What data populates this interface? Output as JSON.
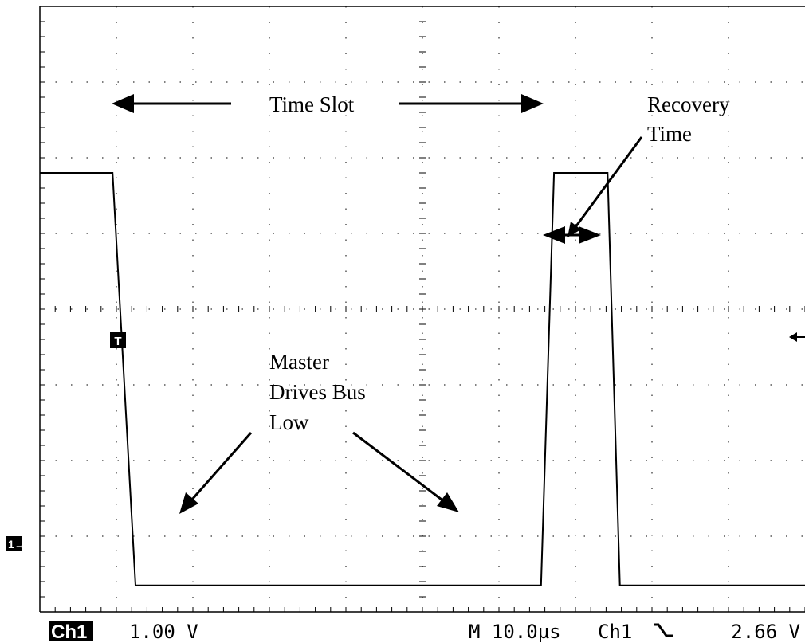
{
  "chart_data": {
    "type": "line",
    "title": "",
    "xlabel": "",
    "ylabel": "",
    "grid": true,
    "x_divisions": 10,
    "y_divisions": 8,
    "series": [
      {
        "x_div": [
          0,
          0.95,
          1.25,
          6.55,
          6.72,
          7.42,
          7.58,
          8.1,
          10
        ],
        "y_div": [
          5.8,
          5.8,
          0.35,
          0.35,
          5.8,
          5.8,
          0.35,
          0.35,
          0.35
        ]
      }
    ],
    "annotations": {
      "time_slot": "Time Slot",
      "recovery_line1": "Recovery",
      "recovery_line2": "Time",
      "master_line1": "Master",
      "master_line2": "Drives Bus",
      "master_line3": "Low"
    },
    "markers": {
      "trigger": "T",
      "channel_ground": "1→"
    }
  },
  "status_bar": {
    "channel": "Ch1",
    "volts_per_div": "1.00 V",
    "timebase": "M 10.0µs",
    "trigger_source": "Ch1",
    "trigger_slope": "\\",
    "trigger_level": "2.66 V"
  }
}
